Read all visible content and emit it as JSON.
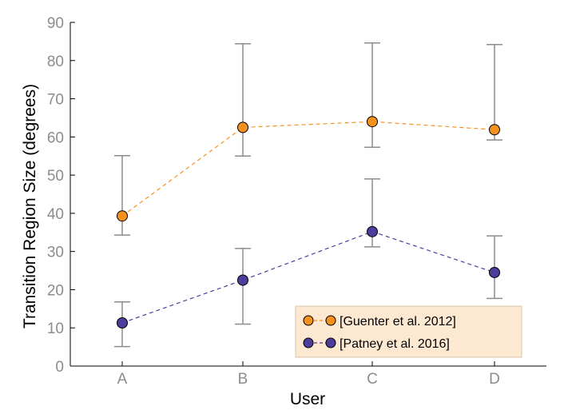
{
  "chart_data": {
    "type": "line",
    "categories": [
      "A",
      "B",
      "C",
      "D"
    ],
    "xlabel": "User",
    "ylabel": "Transition Region Size (degrees)",
    "ylim": [
      0,
      90
    ],
    "yticks": [
      0,
      10,
      20,
      30,
      40,
      50,
      60,
      70,
      80,
      90
    ],
    "grid": false,
    "legend_position": "bottom-right",
    "legend_background": "#fde9d2",
    "error_bar_color": "#8c8c8c",
    "series": [
      {
        "name": "[Guenter et al. 2012]",
        "color": "#f5921e",
        "line_style": "dashed",
        "values": [
          39.3,
          62.5,
          64.0,
          61.9
        ],
        "err_low": [
          34.3,
          55.0,
          57.3,
          59.2
        ],
        "err_high": [
          55.1,
          84.4,
          84.6,
          84.2
        ]
      },
      {
        "name": "[Patney et al. 2016]",
        "color": "#4b3f9b",
        "line_style": "dashed",
        "values": [
          11.3,
          22.5,
          35.2,
          24.5
        ],
        "err_low": [
          5.1,
          11.0,
          31.2,
          17.7
        ],
        "err_high": [
          16.8,
          30.8,
          49.0,
          34.1
        ]
      }
    ]
  }
}
